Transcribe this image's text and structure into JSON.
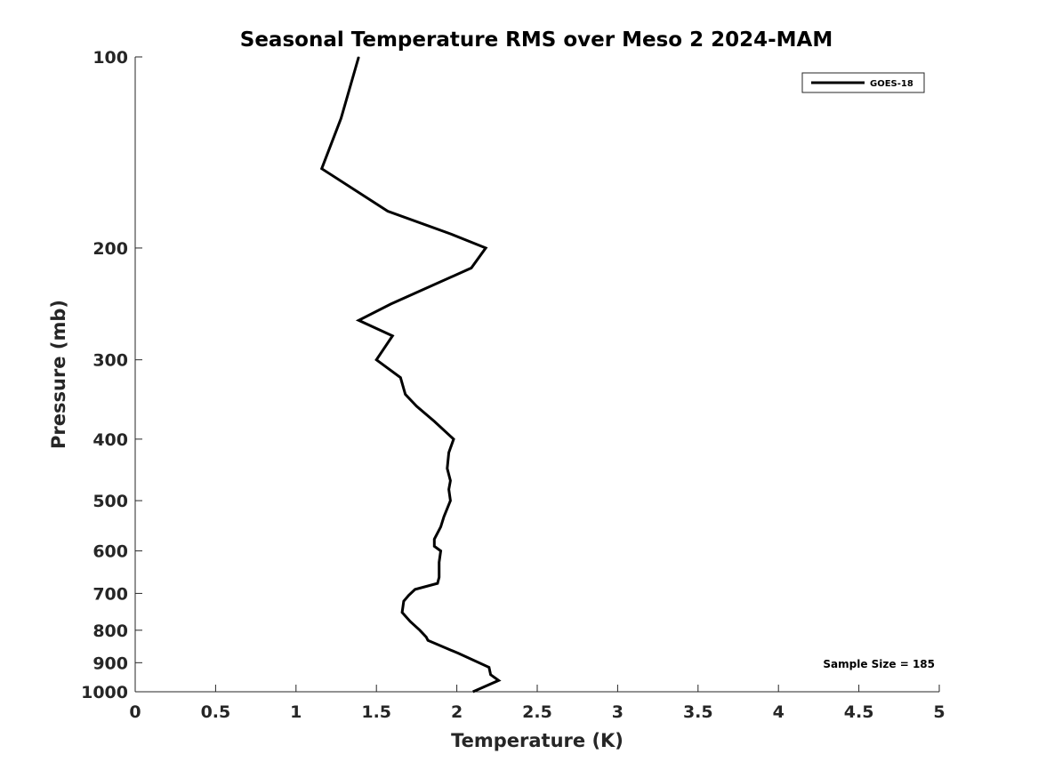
{
  "chart_data": {
    "type": "line",
    "title": "Seasonal Temperature RMS over Meso 2  2024-MAM",
    "xlabel": "Temperature (K)",
    "ylabel": "Pressure (mb)",
    "xlim": [
      0,
      5
    ],
    "ylim": [
      1000,
      100
    ],
    "y_scale": "log",
    "y_reversed": true,
    "x_ticks": [
      0,
      0.5,
      1,
      1.5,
      2,
      2.5,
      3,
      3.5,
      4,
      4.5,
      5
    ],
    "x_tick_labels": [
      "0",
      "0.5",
      "1",
      "1.5",
      "2",
      "2.5",
      "3",
      "3.5",
      "4",
      "4.5",
      "5"
    ],
    "y_ticks": [
      100,
      200,
      300,
      400,
      500,
      600,
      700,
      800,
      900,
      1000
    ],
    "y_tick_labels": [
      "100",
      "200",
      "300",
      "400",
      "500",
      "600",
      "700",
      "800",
      "900",
      "1000"
    ],
    "grid": false,
    "legend_position": "top-right",
    "series": [
      {
        "name": "GOES-18",
        "color": "#000000",
        "points": [
          [
            1.39,
            100
          ],
          [
            1.28,
            125
          ],
          [
            1.16,
            150
          ],
          [
            1.57,
            175
          ],
          [
            1.96,
            190
          ],
          [
            2.18,
            200
          ],
          [
            2.09,
            215
          ],
          [
            1.59,
            245
          ],
          [
            1.39,
            260
          ],
          [
            1.6,
            275
          ],
          [
            1.5,
            300
          ],
          [
            1.65,
            320
          ],
          [
            1.68,
            340
          ],
          [
            1.75,
            355
          ],
          [
            1.86,
            375
          ],
          [
            1.98,
            400
          ],
          [
            1.95,
            420
          ],
          [
            1.94,
            445
          ],
          [
            1.96,
            465
          ],
          [
            1.95,
            480
          ],
          [
            1.96,
            500
          ],
          [
            1.92,
            530
          ],
          [
            1.9,
            550
          ],
          [
            1.86,
            575
          ],
          [
            1.86,
            590
          ],
          [
            1.9,
            600
          ],
          [
            1.89,
            625
          ],
          [
            1.89,
            660
          ],
          [
            1.88,
            675
          ],
          [
            1.74,
            690
          ],
          [
            1.7,
            705
          ],
          [
            1.67,
            720
          ],
          [
            1.66,
            750
          ],
          [
            1.71,
            775
          ],
          [
            1.77,
            800
          ],
          [
            1.81,
            820
          ],
          [
            1.82,
            830
          ],
          [
            2.01,
            870
          ],
          [
            2.2,
            915
          ],
          [
            2.21,
            940
          ],
          [
            2.26,
            960
          ],
          [
            2.1,
            1000
          ]
        ]
      }
    ],
    "annotations": [
      "Sample Size = 185"
    ]
  }
}
